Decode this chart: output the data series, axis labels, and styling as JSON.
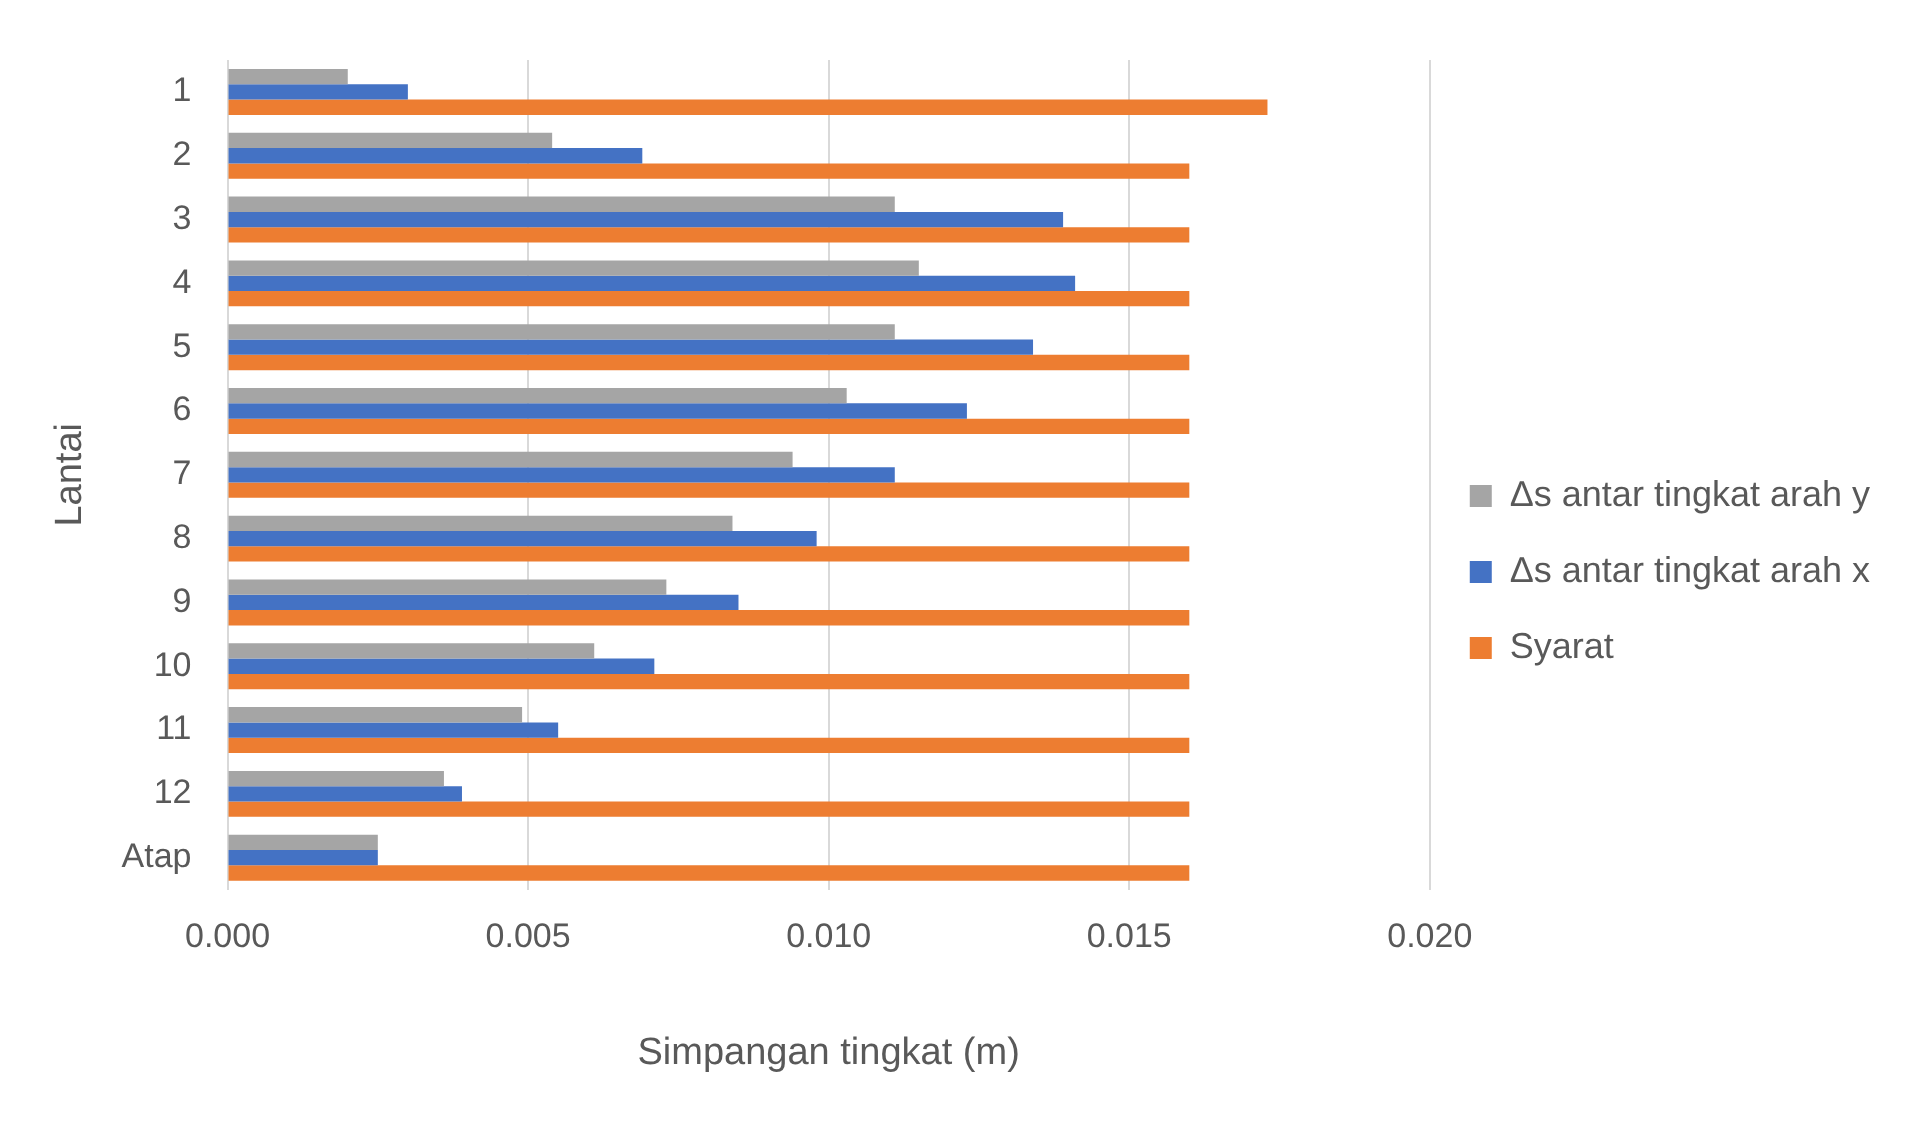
{
  "chart_data": {
    "type": "bar",
    "orientation": "horizontal",
    "xlabel": "Simpangan tingkat (m)",
    "ylabel": "Lantai",
    "categories": [
      "1",
      "2",
      "3",
      "4",
      "5",
      "6",
      "7",
      "8",
      "9",
      "10",
      "11",
      "12",
      "Atap"
    ],
    "series": [
      {
        "name": "Δs antar tingkat arah y",
        "color": "#a5a5a5",
        "values": [
          0.002,
          0.0054,
          0.0111,
          0.0115,
          0.0111,
          0.0103,
          0.0094,
          0.0084,
          0.0073,
          0.0061,
          0.0049,
          0.0036,
          0.0025
        ]
      },
      {
        "name": "Δs antar tingkat arah x",
        "color": "#4472c4",
        "values": [
          0.003,
          0.0069,
          0.0139,
          0.0141,
          0.0134,
          0.0123,
          0.0111,
          0.0098,
          0.0085,
          0.0071,
          0.0055,
          0.0039,
          0.0025
        ]
      },
      {
        "name": "Syarat",
        "color": "#ed7d31",
        "values": [
          0.0173,
          0.016,
          0.016,
          0.016,
          0.016,
          0.016,
          0.016,
          0.016,
          0.016,
          0.016,
          0.016,
          0.016,
          0.016
        ]
      }
    ],
    "xlim": [
      0,
      0.02
    ],
    "xticks": [
      {
        "value": 0,
        "label": "0.000"
      },
      {
        "value": 0.005,
        "label": "0.005"
      },
      {
        "value": 0.01,
        "label": "0.010"
      },
      {
        "value": 0.015,
        "label": "0.015"
      },
      {
        "value": 0.02,
        "label": "0.020"
      }
    ],
    "grid": "x",
    "legend": "right"
  }
}
